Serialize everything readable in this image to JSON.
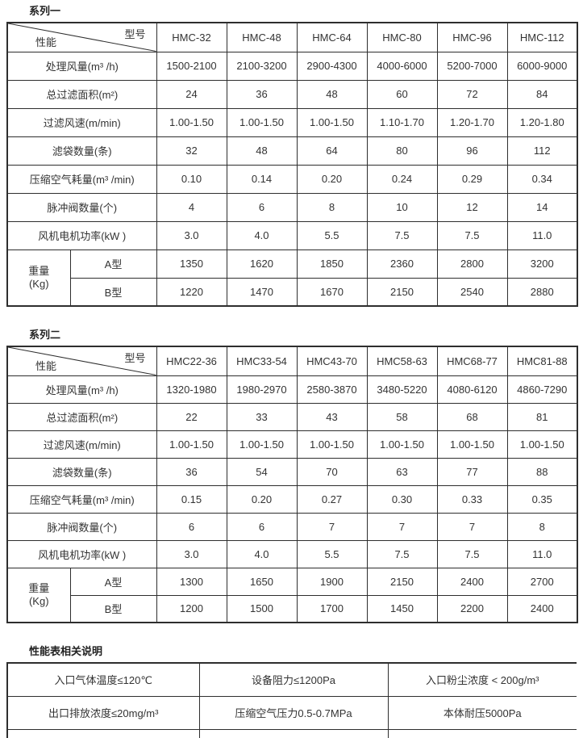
{
  "page": {
    "background": "#ffffff",
    "text_color": "#333333",
    "border_color": "#2e2e2e"
  },
  "series1": {
    "title": "系列一",
    "corner_top": "型号",
    "corner_bottom": "性能",
    "columns": [
      "HMC-32",
      "HMC-48",
      "HMC-64",
      "HMC-80",
      "HMC-96",
      "HMC-112"
    ],
    "rows": [
      {
        "label": "处理风量(m³ /h)",
        "values": [
          "1500-2100",
          "2100-3200",
          "2900-4300",
          "4000-6000",
          "5200-7000",
          "6000-9000"
        ]
      },
      {
        "label": "总过滤面积(m²)",
        "values": [
          "24",
          "36",
          "48",
          "60",
          "72",
          "84"
        ]
      },
      {
        "label": "过滤风速(m/min)",
        "values": [
          "1.00-1.50",
          "1.00-1.50",
          "1.00-1.50",
          "1.10-1.70",
          "1.20-1.70",
          "1.20-1.80"
        ]
      },
      {
        "label": "滤袋数量(条)",
        "values": [
          "32",
          "48",
          "64",
          "80",
          "96",
          "112"
        ]
      },
      {
        "label": "压缩空气耗量(m³ /min)",
        "values": [
          "0.10",
          "0.14",
          "0.20",
          "0.24",
          "0.29",
          "0.34"
        ]
      },
      {
        "label": "脉冲阀数量(个)",
        "values": [
          "4",
          "6",
          "8",
          "10",
          "12",
          "14"
        ]
      },
      {
        "label": "风机电机功率(kW )",
        "values": [
          "3.0",
          "4.0",
          "5.5",
          "7.5",
          "7.5",
          "11.0"
        ]
      }
    ],
    "weight": {
      "label_line1": "重量",
      "label_line2": "(Kg)",
      "rows": [
        {
          "type": "A型",
          "values": [
            "1350",
            "1620",
            "1850",
            "2360",
            "2800",
            "3200"
          ]
        },
        {
          "type": "B型",
          "values": [
            "1220",
            "1470",
            "1670",
            "2150",
            "2540",
            "2880"
          ]
        }
      ]
    }
  },
  "series2": {
    "title": "系列二",
    "corner_top": "型号",
    "corner_bottom": "性能",
    "columns": [
      "HMC22-36",
      "HMC33-54",
      "HMC43-70",
      "HMC58-63",
      "HMC68-77",
      "HMC81-88"
    ],
    "rows": [
      {
        "label": "处理风量(m³ /h)",
        "values": [
          "1320-1980",
          "1980-2970",
          "2580-3870",
          "3480-5220",
          "4080-6120",
          "4860-7290"
        ]
      },
      {
        "label": "总过滤面积(m²)",
        "values": [
          "22",
          "33",
          "43",
          "58",
          "68",
          "81"
        ]
      },
      {
        "label": "过滤风速(m/min)",
        "values": [
          "1.00-1.50",
          "1.00-1.50",
          "1.00-1.50",
          "1.00-1.50",
          "1.00-1.50",
          "1.00-1.50"
        ]
      },
      {
        "label": "滤袋数量(条)",
        "values": [
          "36",
          "54",
          "70",
          "63",
          "77",
          "88"
        ]
      },
      {
        "label": "压缩空气耗量(m³ /min)",
        "values": [
          "0.15",
          "0.20",
          "0.27",
          "0.30",
          "0.33",
          "0.35"
        ]
      },
      {
        "label": "脉冲阀数量(个)",
        "values": [
          "6",
          "6",
          "7",
          "7",
          "7",
          "8"
        ]
      },
      {
        "label": "风机电机功率(kW )",
        "values": [
          "3.0",
          "4.0",
          "5.5",
          "7.5",
          "7.5",
          "11.0"
        ]
      }
    ],
    "weight": {
      "label_line1": "重量",
      "label_line2": "(Kg)",
      "rows": [
        {
          "type": "A型",
          "values": [
            "1300",
            "1650",
            "1900",
            "2150",
            "2400",
            "2700"
          ]
        },
        {
          "type": "B型",
          "values": [
            "1200",
            "1500",
            "1700",
            "1450",
            "2200",
            "2400"
          ]
        }
      ]
    }
  },
  "notes": {
    "title": "性能表相关说明",
    "rows": [
      [
        "入口气体温度≤120℃",
        "设备阻力≤1200Pa",
        "入口粉尘浓度 < 200g/m³"
      ],
      [
        "出口排放浓度≤20mg/m³",
        "压缩空气压力0.5-0.7MPa",
        "本体耐压5000Pa"
      ]
    ]
  }
}
